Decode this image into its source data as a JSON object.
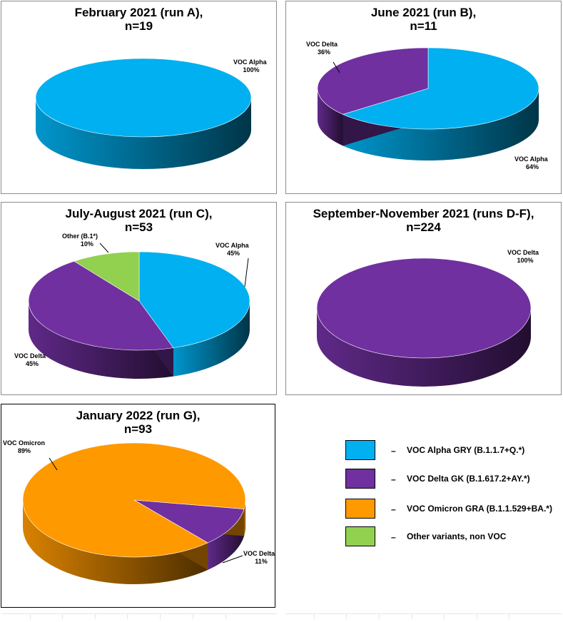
{
  "colors": {
    "alpha": "#00b0f0",
    "delta": "#7030a0",
    "omicron": "#ff9900",
    "other": "#92d050"
  },
  "chart_data": [
    {
      "type": "pie",
      "title_line1": "February 2021 (run A),",
      "title_line2": "n=19",
      "slices": [
        {
          "category": "alpha",
          "label": "VOC Alpha",
          "pct": "100%",
          "value": 100
        }
      ]
    },
    {
      "type": "pie",
      "title_line1": "June 2021 (run B),",
      "title_line2": "n=11",
      "slices": [
        {
          "category": "alpha",
          "label": "VOC Alpha",
          "pct": "64%",
          "value": 64
        },
        {
          "category": "delta",
          "label": "VOC Delta",
          "pct": "36%",
          "value": 36
        }
      ]
    },
    {
      "type": "pie",
      "title_line1": "July-August  2021 (run C),",
      "title_line2": "n=53",
      "slices": [
        {
          "category": "alpha",
          "label": "VOC Alpha",
          "pct": "45%",
          "value": 45
        },
        {
          "category": "delta",
          "label": "VOC Delta",
          "pct": "45%",
          "value": 45
        },
        {
          "category": "other",
          "label": "Other  (B.1*)",
          "pct": "10%",
          "value": 10
        }
      ]
    },
    {
      "type": "pie",
      "title_line1": "September-November 2021 (runs D-F),",
      "title_line2": "n=224",
      "slices": [
        {
          "category": "delta",
          "label": "VOC Delta",
          "pct": "100%",
          "value": 100
        }
      ]
    },
    {
      "type": "pie",
      "title_line1": "January 2022 (run G),",
      "title_line2": "n=93",
      "slices": [
        {
          "category": "delta",
          "label": "VOC Delta",
          "pct": "11%",
          "value": 11
        },
        {
          "category": "omicron",
          "label": "VOC Omicron",
          "pct": "89%",
          "value": 89
        }
      ]
    }
  ],
  "legend": {
    "dash": "–",
    "items": [
      {
        "category": "alpha",
        "text": "VOC Alpha GRY (B.1.1.7+Q.*)"
      },
      {
        "category": "delta",
        "text": "VOC Delta GK (B.1.617.2+AY.*)"
      },
      {
        "category": "omicron",
        "text": "VOC Omicron GRA (B.1.1.529+BA.*)"
      },
      {
        "category": "other",
        "text": "Other variants, non VOC"
      }
    ]
  }
}
